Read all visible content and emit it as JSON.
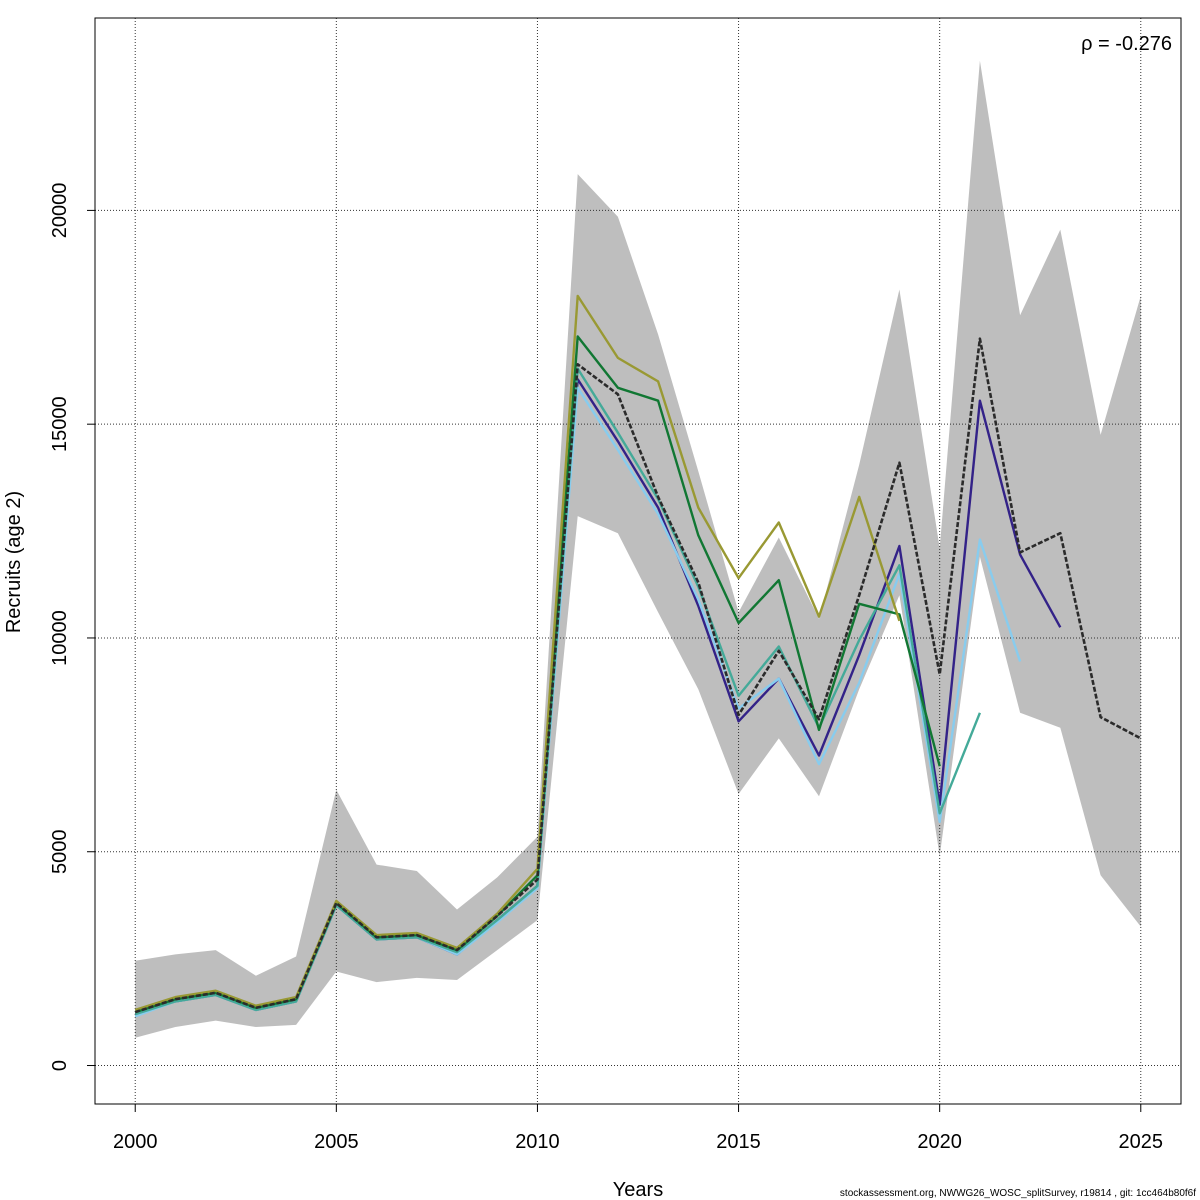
{
  "chart_data": {
    "type": "line",
    "title": "",
    "xlabel": "Years",
    "ylabel": "Recruits (age 2)",
    "xlim": [
      1999,
      2026
    ],
    "ylim": [
      -900,
      24500
    ],
    "x_ticks": [
      2000,
      2005,
      2010,
      2015,
      2020,
      2025
    ],
    "y_ticks": [
      0,
      5000,
      10000,
      15000,
      20000
    ],
    "grid": true,
    "annotation": "ρ = -0.276",
    "footer": "stockassessment.org, NWWG26_WOSC_splitSurvey, r19814 , git: 1cc464b80f6f",
    "confidence_band": {
      "color": "#bebebe",
      "x": [
        2000,
        2001,
        2002,
        2003,
        2004,
        2005,
        2006,
        2007,
        2008,
        2009,
        2010,
        2011,
        2012,
        2013,
        2014,
        2015,
        2016,
        2017,
        2018,
        2019,
        2020,
        2021,
        2022,
        2023,
        2024,
        2025
      ],
      "upper": [
        2450,
        2600,
        2700,
        2100,
        2550,
        6450,
        4700,
        4550,
        3650,
        4400,
        5350,
        20850,
        19850,
        17100,
        13900,
        10600,
        12350,
        10450,
        14050,
        18150,
        12100,
        23500,
        17550,
        19550,
        14750,
        18000
      ],
      "lower": [
        650,
        900,
        1050,
        900,
        950,
        2200,
        1950,
        2050,
        2000,
        2700,
        3400,
        12850,
        12450,
        10600,
        8800,
        6350,
        7650,
        6300,
        8800,
        11000,
        4900,
        11900,
        8250,
        7900,
        4450,
        3250
      ]
    },
    "series": [
      {
        "color": "#2b2b2b",
        "dashed": true,
        "x": [
          2000,
          2001,
          2002,
          2003,
          2004,
          2005,
          2006,
          2007,
          2008,
          2009,
          2010,
          2011,
          2012,
          2013,
          2014,
          2015,
          2016,
          2017,
          2018,
          2019,
          2020,
          2021,
          2022,
          2023,
          2024,
          2025
        ],
        "values": [
          1250,
          1550,
          1700,
          1350,
          1550,
          3800,
          3000,
          3050,
          2700,
          3500,
          4350,
          16400,
          15700,
          13300,
          11300,
          8200,
          9700,
          8100,
          11000,
          14100,
          9150,
          17000,
          12000,
          12450,
          8150,
          7650
        ]
      },
      {
        "color": "#332288",
        "dashed": false,
        "x": [
          2000,
          2001,
          2002,
          2003,
          2004,
          2005,
          2006,
          2007,
          2008,
          2009,
          2010,
          2011,
          2012,
          2013,
          2014,
          2015,
          2016,
          2017,
          2018,
          2019,
          2020,
          2021,
          2022,
          2023
        ],
        "values": [
          1200,
          1500,
          1650,
          1300,
          1500,
          3750,
          2950,
          3000,
          2600,
          3400,
          4200,
          16050,
          14600,
          13050,
          10750,
          8050,
          9050,
          7250,
          9600,
          12150,
          6100,
          15550,
          11950,
          10250
        ]
      },
      {
        "color": "#88ccee",
        "dashed": false,
        "x": [
          2000,
          2001,
          2002,
          2003,
          2004,
          2005,
          2006,
          2007,
          2008,
          2009,
          2010,
          2011,
          2012,
          2013,
          2014,
          2015,
          2016,
          2017,
          2018,
          2019,
          2020,
          2021,
          2022
        ],
        "values": [
          1150,
          1500,
          1650,
          1300,
          1500,
          3750,
          2950,
          3000,
          2600,
          3350,
          4150,
          15850,
          14400,
          12900,
          10900,
          8350,
          9050,
          7050,
          8950,
          11500,
          5700,
          12300,
          9450
        ]
      },
      {
        "color": "#44aa99",
        "dashed": false,
        "x": [
          2000,
          2001,
          2002,
          2003,
          2004,
          2005,
          2006,
          2007,
          2008,
          2009,
          2010,
          2011,
          2012,
          2013,
          2014,
          2015,
          2016,
          2017,
          2018,
          2019,
          2020,
          2021
        ],
        "values": [
          1200,
          1500,
          1650,
          1300,
          1500,
          3750,
          2950,
          3000,
          2650,
          3400,
          4200,
          16300,
          14800,
          13250,
          11200,
          8650,
          9800,
          7900,
          9950,
          11700,
          5900,
          8250
        ]
      },
      {
        "color": "#117733",
        "dashed": false,
        "x": [
          2000,
          2001,
          2002,
          2003,
          2004,
          2005,
          2006,
          2007,
          2008,
          2009,
          2010,
          2011,
          2012,
          2013,
          2014,
          2015,
          2016,
          2017,
          2018,
          2019,
          2020
        ],
        "values": [
          1250,
          1550,
          1700,
          1350,
          1550,
          3800,
          3000,
          3050,
          2700,
          3500,
          4450,
          17050,
          15850,
          15550,
          12400,
          10350,
          11350,
          7850,
          10800,
          10550,
          7000
        ]
      },
      {
        "color": "#999933",
        "dashed": false,
        "x": [
          2000,
          2001,
          2002,
          2003,
          2004,
          2005,
          2006,
          2007,
          2008,
          2009,
          2010,
          2011,
          2012,
          2013,
          2014,
          2015,
          2016,
          2017,
          2018,
          2019
        ],
        "values": [
          1300,
          1600,
          1750,
          1400,
          1600,
          3850,
          3050,
          3100,
          2750,
          3550,
          4600,
          18000,
          16550,
          16000,
          13050,
          11400,
          12700,
          10500,
          13300,
          10400
        ]
      }
    ]
  }
}
